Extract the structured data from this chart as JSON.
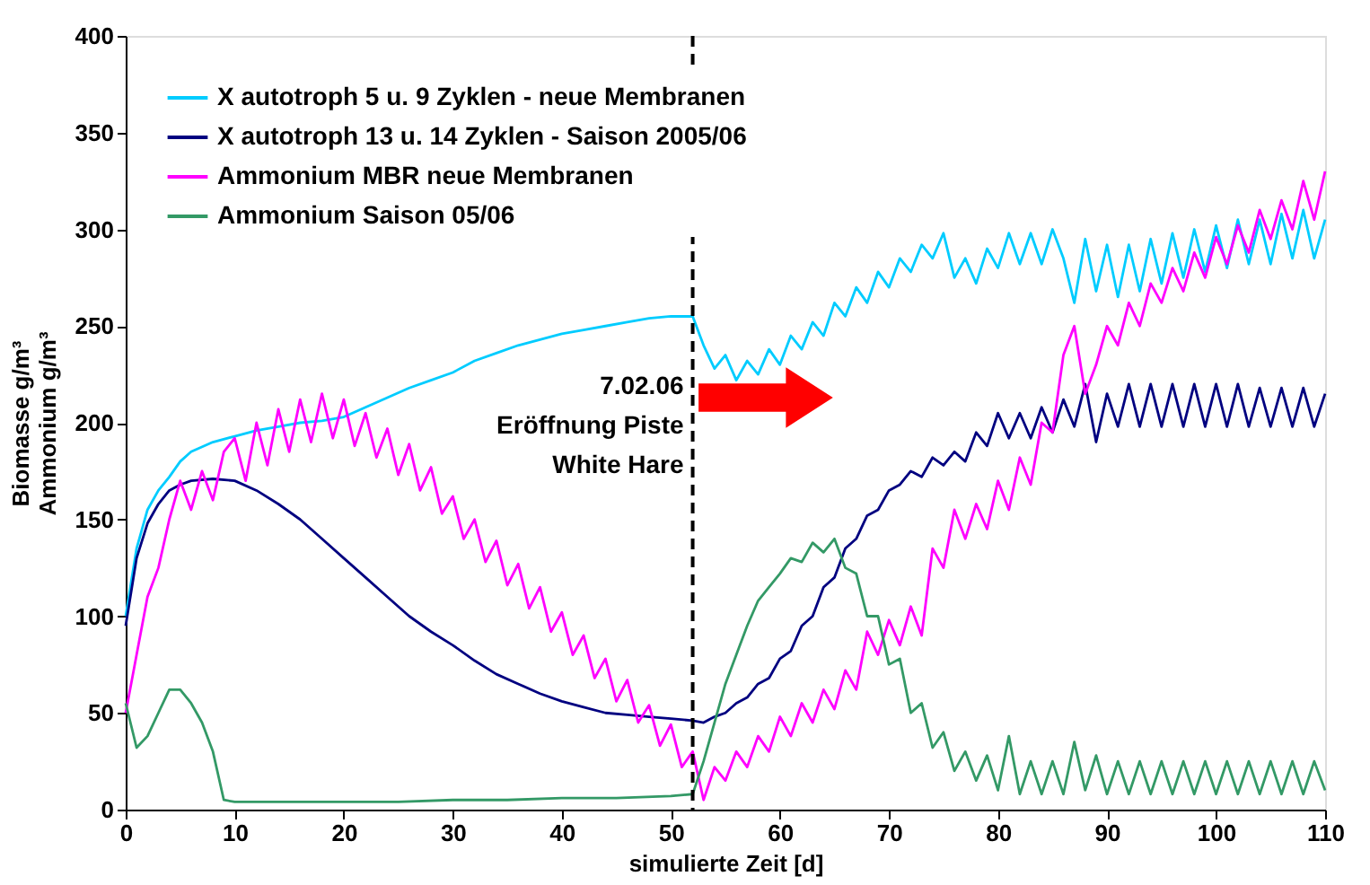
{
  "chart_data": {
    "type": "line",
    "xlabel": "simulierte Zeit [d]",
    "ylabel": "Biomasse g/m³\nAmmonium g/m³",
    "xlim": [
      0,
      110
    ],
    "xticks": [
      0,
      10,
      20,
      30,
      40,
      50,
      60,
      70,
      80,
      90,
      100,
      110
    ],
    "ylim": [
      0,
      400
    ],
    "yticks": [
      0,
      50,
      100,
      150,
      200,
      250,
      300,
      350,
      400
    ],
    "grid": false,
    "legend": "top left",
    "marker": "none",
    "line_style": "solid",
    "ref_lines": [
      {
        "axis": "x",
        "value": 52,
        "line_style": "dashed",
        "color": "#000000"
      }
    ],
    "annotations": [
      {
        "text": "7.02.06\nEröffnung Piste\nWhite Hare",
        "x": 52,
        "y": 225
      }
    ],
    "series": [
      {
        "name": "X autotroph 5 u. 9 Zyklen - neue Membranen",
        "color": "#00ccff",
        "x": [
          0,
          1,
          2,
          3,
          4,
          5,
          6,
          8,
          10,
          12,
          14,
          16,
          18,
          20,
          22,
          24,
          26,
          28,
          30,
          32,
          34,
          36,
          38,
          40,
          42,
          44,
          46,
          48,
          50,
          52,
          53,
          54,
          55,
          56,
          57,
          58,
          59,
          60,
          61,
          62,
          63,
          64,
          65,
          66,
          67,
          68,
          69,
          70,
          71,
          72,
          73,
          74,
          75,
          76,
          77,
          78,
          79,
          80,
          81,
          82,
          83,
          84,
          85,
          86,
          87,
          88,
          89,
          90,
          91,
          92,
          93,
          94,
          95,
          96,
          97,
          98,
          99,
          100,
          101,
          102,
          103,
          104,
          105,
          106,
          107,
          108,
          109,
          110
        ],
        "values": [
          100,
          135,
          155,
          165,
          172,
          180,
          185,
          190,
          193,
          196,
          198,
          200,
          201,
          203,
          208,
          213,
          218,
          222,
          226,
          232,
          236,
          240,
          243,
          246,
          248,
          250,
          252,
          254,
          255,
          255,
          240,
          228,
          235,
          222,
          232,
          225,
          238,
          230,
          245,
          238,
          252,
          245,
          262,
          255,
          270,
          262,
          278,
          270,
          285,
          278,
          292,
          285,
          298,
          275,
          285,
          272,
          290,
          280,
          298,
          282,
          298,
          282,
          300,
          285,
          262,
          295,
          268,
          292,
          265,
          292,
          268,
          295,
          272,
          298,
          275,
          300,
          278,
          302,
          280,
          305,
          282,
          305,
          282,
          308,
          285,
          310,
          285,
          305
        ]
      },
      {
        "name": "X autotroph 13  u. 14 Zyklen - Saison 2005/06",
        "color": "#000080",
        "x": [
          0,
          1,
          2,
          3,
          4,
          5,
          6,
          8,
          10,
          12,
          14,
          16,
          18,
          20,
          22,
          24,
          26,
          28,
          30,
          32,
          34,
          36,
          38,
          40,
          42,
          44,
          46,
          48,
          50,
          52,
          53,
          54,
          55,
          56,
          57,
          58,
          59,
          60,
          61,
          62,
          63,
          64,
          65,
          66,
          67,
          68,
          69,
          70,
          71,
          72,
          73,
          74,
          75,
          76,
          77,
          78,
          79,
          80,
          81,
          82,
          83,
          84,
          85,
          86,
          87,
          88,
          89,
          90,
          91,
          92,
          93,
          94,
          95,
          96,
          97,
          98,
          99,
          100,
          101,
          102,
          103,
          104,
          105,
          106,
          107,
          108,
          109,
          110
        ],
        "values": [
          95,
          130,
          148,
          158,
          165,
          168,
          170,
          171,
          170,
          165,
          158,
          150,
          140,
          130,
          120,
          110,
          100,
          92,
          85,
          77,
          70,
          65,
          60,
          56,
          53,
          50,
          49,
          48,
          47,
          46,
          45,
          48,
          50,
          55,
          58,
          65,
          68,
          78,
          82,
          95,
          100,
          115,
          120,
          135,
          140,
          152,
          155,
          165,
          168,
          175,
          172,
          182,
          178,
          185,
          180,
          195,
          188,
          205,
          192,
          205,
          192,
          208,
          195,
          212,
          198,
          220,
          190,
          215,
          198,
          220,
          198,
          220,
          198,
          220,
          198,
          220,
          198,
          220,
          198,
          220,
          198,
          218,
          198,
          218,
          198,
          218,
          198,
          215
        ]
      },
      {
        "name": "Ammonium MBR neue Membranen",
        "color": "#ff00ff",
        "x": [
          0,
          1,
          2,
          3,
          4,
          5,
          6,
          7,
          8,
          9,
          10,
          11,
          12,
          13,
          14,
          15,
          16,
          17,
          18,
          19,
          20,
          21,
          22,
          23,
          24,
          25,
          26,
          27,
          28,
          29,
          30,
          31,
          32,
          33,
          34,
          35,
          36,
          37,
          38,
          39,
          40,
          41,
          42,
          43,
          44,
          45,
          46,
          47,
          48,
          49,
          50,
          51,
          52,
          53,
          54,
          55,
          56,
          57,
          58,
          59,
          60,
          61,
          62,
          63,
          64,
          65,
          66,
          67,
          68,
          69,
          70,
          71,
          72,
          73,
          74,
          75,
          76,
          77,
          78,
          79,
          80,
          81,
          82,
          83,
          84,
          85,
          86,
          87,
          88,
          89,
          90,
          91,
          92,
          93,
          94,
          95,
          96,
          97,
          98,
          99,
          100,
          101,
          102,
          103,
          104,
          105,
          106,
          107,
          108,
          109,
          110
        ],
        "values": [
          50,
          80,
          110,
          125,
          150,
          170,
          155,
          175,
          160,
          185,
          192,
          170,
          200,
          178,
          207,
          185,
          212,
          190,
          215,
          192,
          212,
          188,
          205,
          182,
          197,
          173,
          189,
          165,
          177,
          153,
          162,
          140,
          150,
          128,
          139,
          116,
          127,
          104,
          115,
          92,
          102,
          80,
          90,
          68,
          78,
          56,
          67,
          45,
          54,
          33,
          44,
          22,
          30,
          5,
          22,
          15,
          30,
          22,
          38,
          30,
          48,
          38,
          55,
          45,
          62,
          52,
          72,
          62,
          92,
          80,
          98,
          85,
          105,
          90,
          135,
          125,
          155,
          140,
          158,
          145,
          170,
          155,
          182,
          168,
          200,
          195,
          235,
          250,
          215,
          230,
          250,
          240,
          262,
          250,
          272,
          262,
          280,
          268,
          288,
          275,
          296,
          282,
          302,
          288,
          310,
          295,
          315,
          300,
          325,
          305,
          330
        ]
      },
      {
        "name": "Ammonium Saison 05/06",
        "color": "#339966",
        "x": [
          0,
          1,
          2,
          3,
          4,
          5,
          6,
          7,
          8,
          9,
          10,
          15,
          20,
          25,
          30,
          35,
          40,
          45,
          50,
          52,
          53,
          54,
          55,
          56,
          57,
          58,
          59,
          60,
          61,
          62,
          63,
          64,
          65,
          66,
          67,
          68,
          69,
          70,
          71,
          72,
          73,
          74,
          75,
          76,
          77,
          78,
          79,
          80,
          81,
          82,
          83,
          84,
          85,
          86,
          87,
          88,
          89,
          90,
          91,
          92,
          93,
          94,
          95,
          96,
          97,
          98,
          99,
          100,
          101,
          102,
          103,
          104,
          105,
          106,
          107,
          108,
          109,
          110
        ],
        "values": [
          55,
          32,
          38,
          50,
          62,
          62,
          55,
          45,
          30,
          5,
          4,
          4,
          4,
          4,
          5,
          5,
          6,
          6,
          7,
          8,
          25,
          45,
          65,
          80,
          95,
          108,
          115,
          122,
          130,
          128,
          138,
          133,
          140,
          125,
          122,
          100,
          100,
          75,
          78,
          50,
          55,
          32,
          40,
          20,
          30,
          15,
          28,
          10,
          38,
          8,
          25,
          8,
          25,
          8,
          35,
          10,
          28,
          8,
          25,
          8,
          25,
          8,
          25,
          8,
          25,
          8,
          25,
          8,
          25,
          8,
          25,
          8,
          25,
          8,
          25,
          8,
          25,
          10
        ]
      }
    ]
  }
}
